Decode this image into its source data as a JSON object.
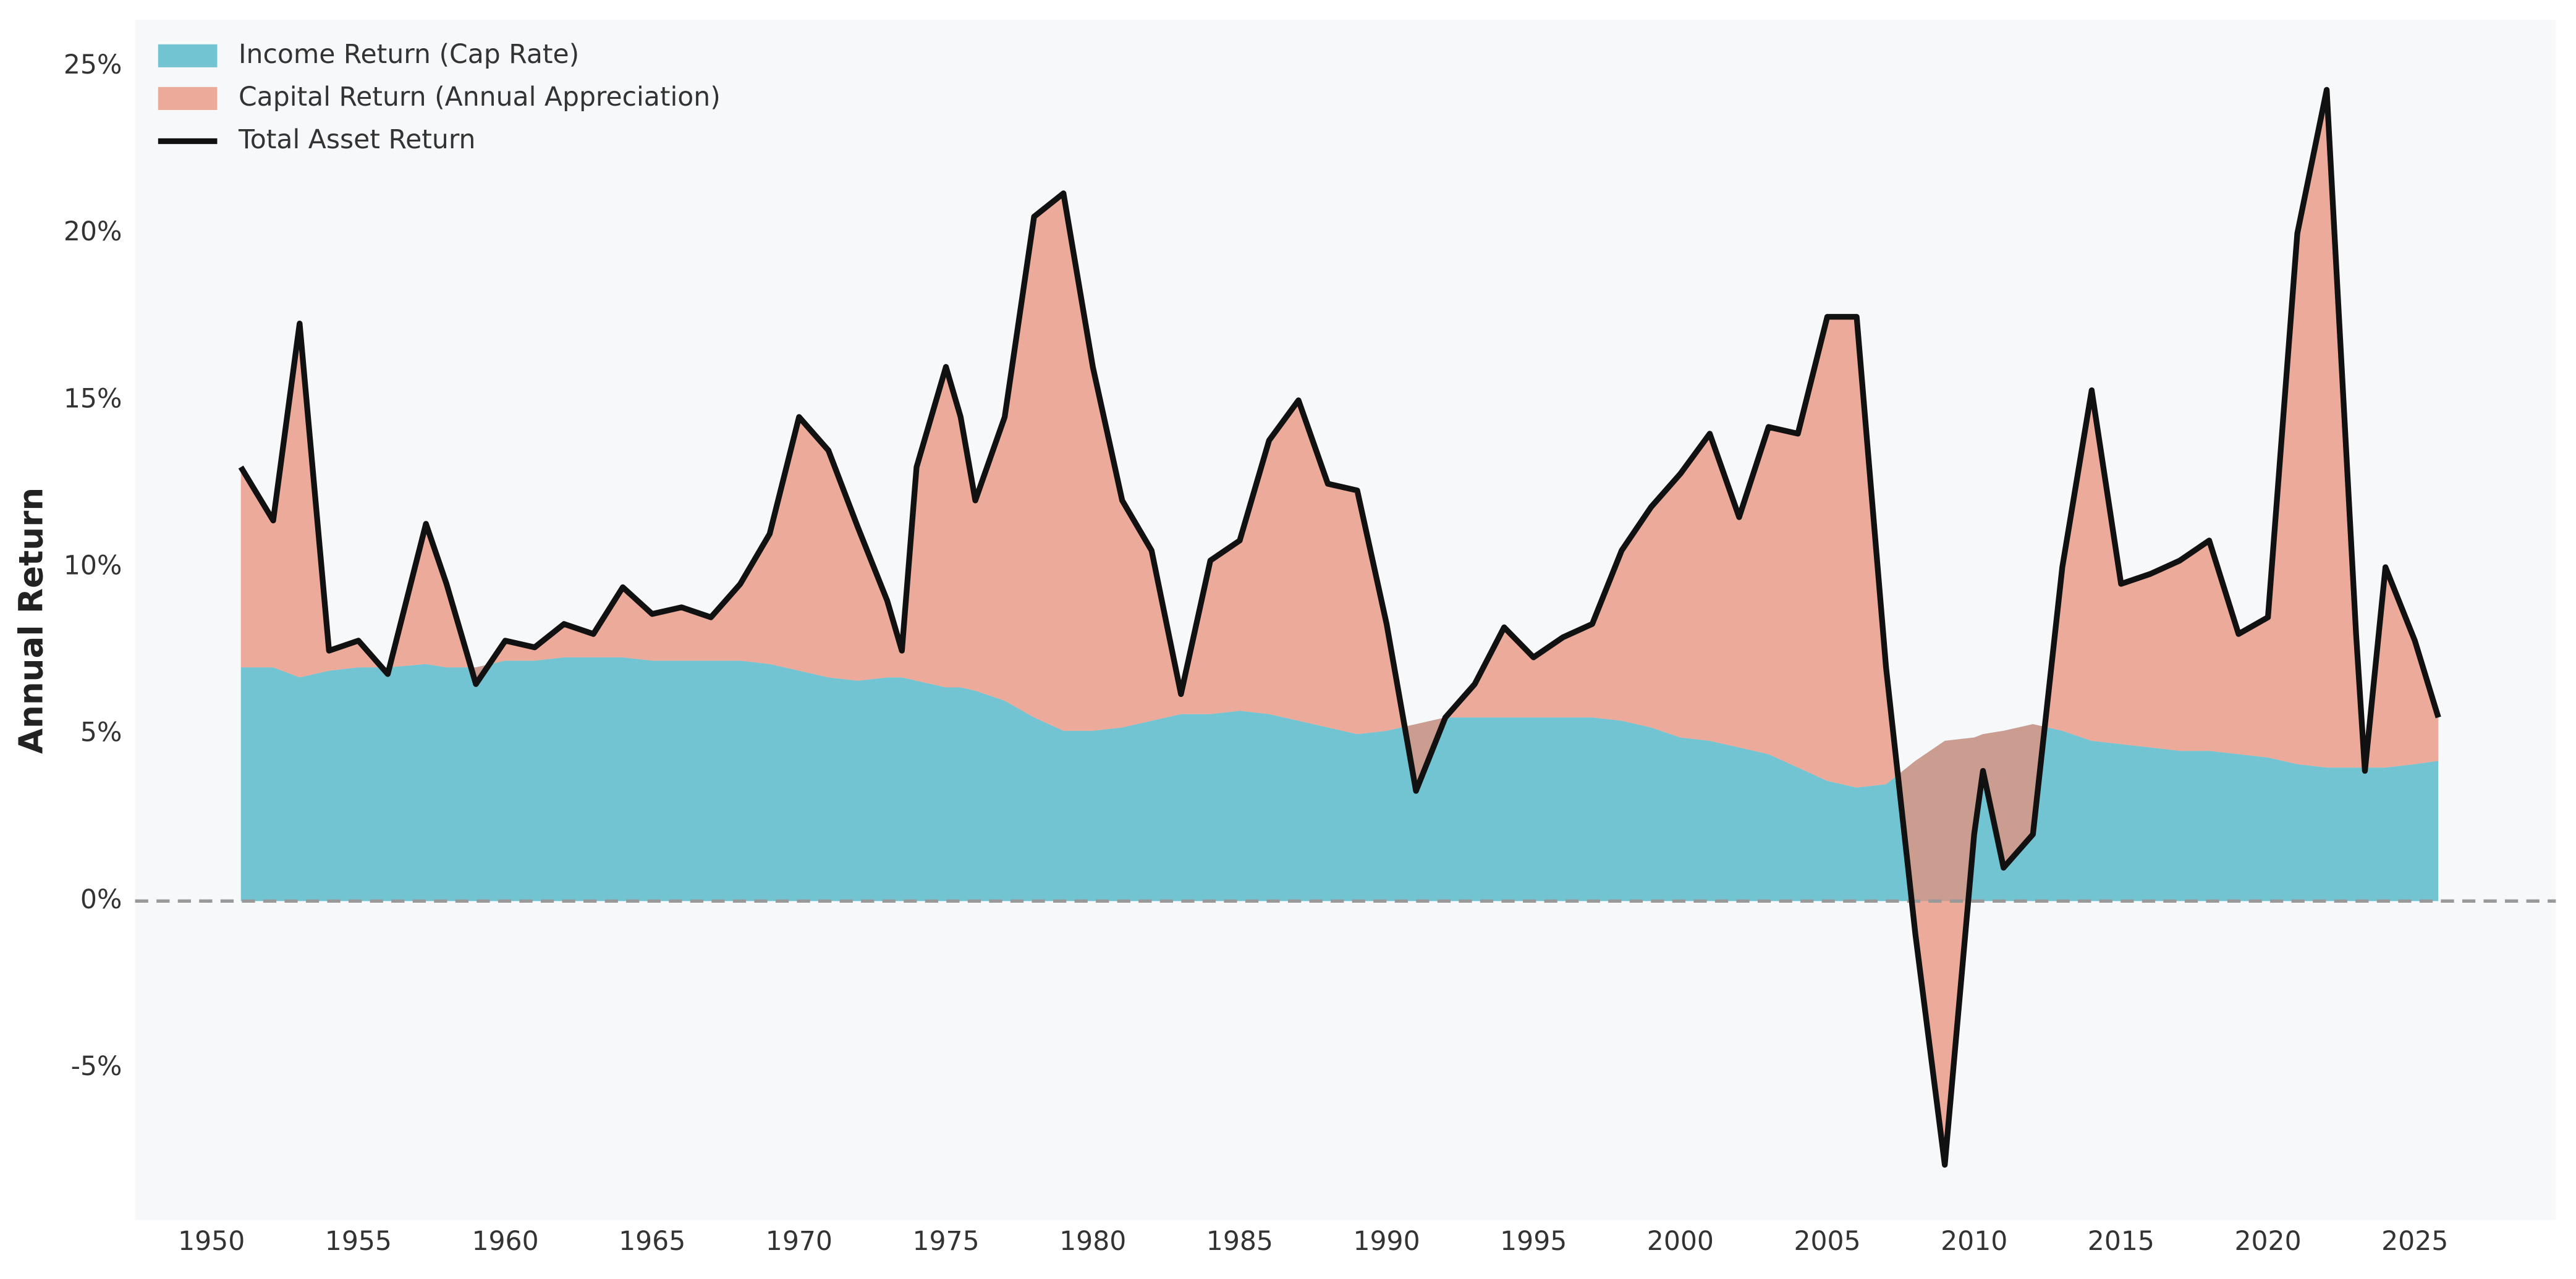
{
  "chart_data": {
    "type": "area",
    "y_label": "Annual Return",
    "x": [
      1951,
      1952.1,
      1953,
      1954,
      1955,
      1956,
      1957.3,
      1958,
      1959,
      1960,
      1961,
      1962,
      1963,
      1964,
      1965,
      1966,
      1967,
      1968,
      1969,
      1970,
      1971,
      1972,
      1973,
      1973.5,
      1974,
      1975,
      1975.5,
      1976,
      1977,
      1978,
      1979,
      1980,
      1981,
      1982,
      1983,
      1984,
      1985,
      1986,
      1987,
      1988,
      1989,
      1990,
      1991,
      1992,
      1993,
      1994,
      1995,
      1996,
      1997,
      1998,
      1999,
      2000,
      2001,
      2002,
      2003,
      2004,
      2005,
      2006,
      2007,
      2008,
      2009,
      2010,
      2010.3,
      2011,
      2012,
      2013,
      2014,
      2015,
      2016,
      2017,
      2018,
      2019,
      2020,
      2021,
      2022,
      2023,
      2023.3,
      2024,
      2025,
      2025.8
    ],
    "series": [
      {
        "name": "Income Return (Cap Rate)",
        "color": "#72c4d2",
        "kind": "area",
        "values": [
          7,
          7,
          6.7,
          6.9,
          7,
          7,
          7.1,
          7,
          7,
          7.2,
          7.2,
          7.3,
          7.3,
          7.3,
          7.2,
          7.2,
          7.2,
          7.2,
          7.1,
          6.9,
          6.7,
          6.6,
          6.7,
          6.7,
          6.6,
          6.4,
          6.4,
          6.3,
          6.0,
          5.5,
          5.1,
          5.1,
          5.2,
          5.4,
          5.6,
          5.6,
          5.7,
          5.6,
          5.4,
          5.2,
          5.0,
          5.1,
          5.3,
          5.5,
          5.5,
          5.5,
          5.5,
          5.5,
          5.5,
          5.4,
          5.2,
          4.9,
          4.8,
          4.6,
          4.4,
          4.0,
          3.6,
          3.4,
          3.5,
          4.2,
          4.8,
          4.9,
          5.0,
          5.1,
          5.3,
          5.1,
          4.8,
          4.7,
          4.6,
          4.5,
          4.5,
          4.4,
          4.3,
          4.1,
          4.0,
          4.0,
          4.0,
          4.0,
          4.1,
          4.2
        ]
      },
      {
        "name": "Capital Return (Annual Appreciation)",
        "color": "#e8907a",
        "kind": "area",
        "values": [
          6,
          4.4,
          10.6,
          0.6,
          0.8,
          -0.2,
          4.2,
          2.5,
          -0.5,
          0.6,
          0.4,
          1.0,
          0.7,
          2.1,
          1.4,
          1.6,
          1.3,
          2.3,
          3.9,
          7.6,
          6.8,
          4.6,
          2.3,
          0.8,
          6.4,
          9.6,
          8.1,
          5.7,
          8.5,
          15,
          16.1,
          10.9,
          6.8,
          5.1,
          0.6,
          4.6,
          5.1,
          8.2,
          9.6,
          7.3,
          7.3,
          3.2,
          -2,
          0,
          1,
          2.7,
          1.8,
          2.4,
          2.8,
          5.1,
          6.6,
          7.9,
          9.2,
          6.9,
          9.8,
          10,
          13.9,
          14.1,
          3.5,
          -5.2,
          -12.7,
          -2.9,
          -1.1,
          -4.1,
          -3.3,
          4.9,
          10.5,
          4.8,
          5.2,
          5.7,
          6.3,
          3.6,
          4.2,
          15.9,
          20.3,
          4,
          -0.1,
          6,
          3.7,
          1.3
        ]
      },
      {
        "name": "Total Asset Return",
        "color": "#111111",
        "kind": "line",
        "values": [
          13,
          11.4,
          17.3,
          7.5,
          7.8,
          6.8,
          11.3,
          9.5,
          6.5,
          7.8,
          7.6,
          8.3,
          8.0,
          9.4,
          8.6,
          8.8,
          8.5,
          9.5,
          11,
          14.5,
          13.5,
          11.2,
          9.0,
          7.5,
          13,
          16,
          14.5,
          12,
          14.5,
          20.5,
          21.2,
          16,
          12,
          10.5,
          6.2,
          10.2,
          10.8,
          13.8,
          15,
          12.5,
          12.3,
          8.3,
          3.3,
          5.5,
          6.5,
          8.2,
          7.3,
          7.9,
          8.3,
          10.5,
          11.8,
          12.8,
          14,
          11.5,
          14.2,
          14,
          17.5,
          17.5,
          7,
          -1,
          -7.9,
          2,
          3.9,
          1,
          2,
          10,
          15.3,
          9.5,
          9.8,
          10.2,
          10.8,
          8,
          8.5,
          20,
          24.3,
          8,
          3.9,
          10,
          7.8,
          5.5
        ]
      }
    ],
    "xlim": [
      1947.4,
      2029.8
    ],
    "ylim": [
      -9.55,
      26.4
    ],
    "xticks": [
      1950,
      1955,
      1960,
      1965,
      1970,
      1975,
      1980,
      1985,
      1990,
      1995,
      2000,
      2005,
      2010,
      2015,
      2020,
      2025
    ],
    "yticks": [
      {
        "value": -5,
        "label": "-5%"
      },
      {
        "value": 0,
        "label": "0%"
      },
      {
        "value": 5,
        "label": "5%"
      },
      {
        "value": 10,
        "label": "10%"
      },
      {
        "value": 15,
        "label": "15%"
      },
      {
        "value": 20,
        "label": "20%"
      },
      {
        "value": 25,
        "label": "25%"
      }
    ],
    "legend": "upper left",
    "grid": false
  }
}
